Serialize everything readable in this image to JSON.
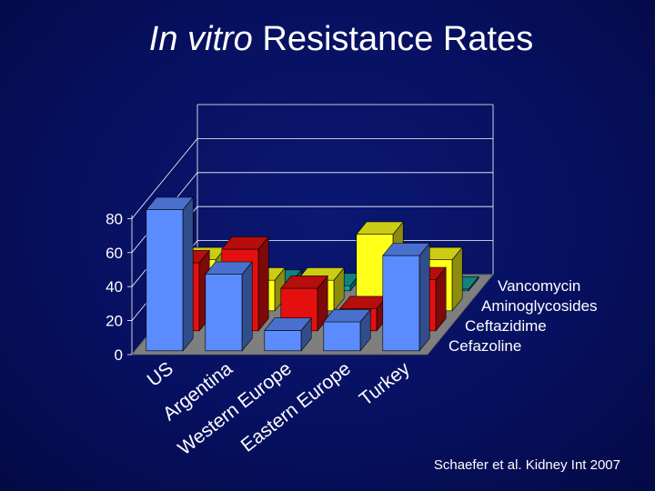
{
  "slide": {
    "title_italic": "In vitro",
    "title_rest": "Resistance Rates",
    "citation": "Schaefer et al. Kidney Int 2007"
  },
  "chart_data": {
    "type": "bar",
    "subtype": "3d-clustered",
    "categories": [
      "US",
      "Argentina",
      "Western Europe",
      "Eastern Europe",
      "Turkey"
    ],
    "series": [
      {
        "name": "Cefazoline",
        "values": [
          83,
          45,
          12,
          17,
          56
        ],
        "color": "#5b8cff"
      },
      {
        "name": "Ceftazidime",
        "values": [
          40,
          48,
          25,
          13,
          30
        ],
        "color": "#e41010"
      },
      {
        "name": "Aminoglycosides",
        "values": [
          30,
          18,
          18,
          45,
          30
        ],
        "color": "#ffff1a"
      },
      {
        "name": "Vancomycin",
        "values": [
          8,
          5,
          3,
          3,
          1
        ],
        "color": "#15a3a0"
      }
    ],
    "yticks": [
      0,
      20,
      40,
      60,
      80
    ],
    "ylim": [
      0,
      100
    ],
    "grid": true,
    "legend": "series labels along right depth axis"
  }
}
